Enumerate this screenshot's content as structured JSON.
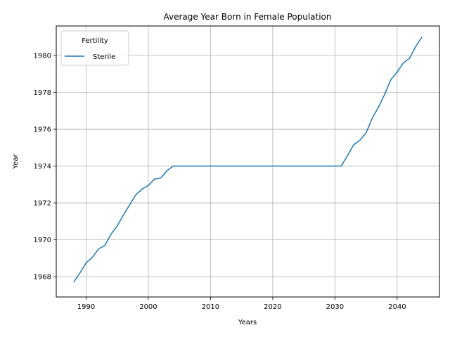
{
  "chart_data": {
    "type": "line",
    "title": "Average Year Born in Female Population",
    "xlabel": "Years",
    "ylabel": "Year",
    "xlim": [
      1985.2,
      2046.8
    ],
    "ylim": [
      1966.9,
      1981.6
    ],
    "xticks": [
      1990,
      2000,
      2010,
      2020,
      2030,
      2040
    ],
    "yticks": [
      1968,
      1970,
      1972,
      1974,
      1976,
      1978,
      1980
    ],
    "grid": true,
    "legend": {
      "title": "Fertility",
      "placement": "upper-left"
    },
    "series": [
      {
        "name": "Sterile",
        "color": "#1f77b4",
        "x": [
          1988,
          1989,
          1990,
          1991,
          1992,
          1993,
          1994,
          1995,
          1996,
          1997,
          1998,
          1999,
          2000,
          2001,
          2002,
          2003,
          2004,
          2005,
          2006,
          2007,
          2008,
          2009,
          2010,
          2011,
          2012,
          2013,
          2014,
          2015,
          2016,
          2017,
          2018,
          2019,
          2020,
          2021,
          2022,
          2023,
          2024,
          2025,
          2026,
          2027,
          2028,
          2029,
          2030,
          2031,
          2032,
          2033,
          2034,
          2035,
          2036,
          2037,
          2038,
          2039,
          2040,
          2041,
          2042,
          2043,
          2044
        ],
        "y": [
          1967.7,
          1968.2,
          1968.75,
          1969.05,
          1969.5,
          1969.7,
          1970.3,
          1970.75,
          1971.35,
          1971.9,
          1972.45,
          1972.75,
          1972.95,
          1973.3,
          1973.35,
          1973.75,
          1974,
          1974,
          1974,
          1974,
          1974,
          1974,
          1974,
          1974,
          1974,
          1974,
          1974,
          1974,
          1974,
          1974,
          1974,
          1974,
          1974,
          1974,
          1974,
          1974,
          1974,
          1974,
          1974,
          1974,
          1974,
          1974,
          1974,
          1974,
          1974.55,
          1975.15,
          1975.4,
          1975.8,
          1976.6,
          1977.2,
          1977.9,
          1978.7,
          1979.1,
          1979.6,
          1979.85,
          1980.5,
          1981.0
        ]
      }
    ]
  }
}
